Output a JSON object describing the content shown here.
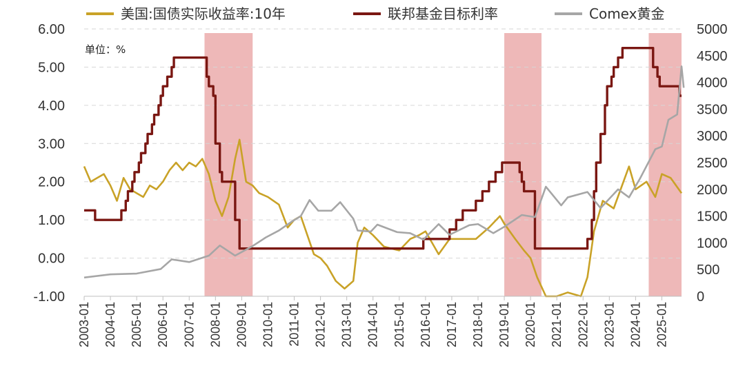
{
  "chart_data": {
    "type": "line",
    "unit_note": "单位：%",
    "x_tick_labels": [
      "2003-01",
      "2004-01",
      "2005-01",
      "2006-01",
      "2007-01",
      "2008-01",
      "2009-01",
      "2010-01",
      "2011-01",
      "2012-01",
      "2013-01",
      "2014-01",
      "2015-01",
      "2016-01",
      "2017-01",
      "2018-01",
      "2019-01",
      "2020-01",
      "2021-01",
      "2022-01",
      "2023-01",
      "2024-01",
      "2025-01"
    ],
    "x_range": [
      "2003-01",
      "2025-10"
    ],
    "y_left": {
      "ticks": [
        "6.00",
        "5.00",
        "4.00",
        "3.00",
        "2.00",
        "1.00",
        "0.00",
        "-1.00"
      ],
      "range": [
        -1.0,
        6.0
      ]
    },
    "y_right": {
      "ticks": [
        "5000",
        "4500",
        "4000",
        "3500",
        "3000",
        "2500",
        "2000",
        "1500",
        "1000",
        "500",
        "0"
      ],
      "range": [
        0,
        5000
      ]
    },
    "grid": "horizontal dashed",
    "legend_position": "top",
    "shaded_periods": [
      {
        "start": "2007-08",
        "end": "2009-06",
        "color": "#eeb8b8"
      },
      {
        "start": "2019-01",
        "end": "2020-06",
        "color": "#eeb8b8"
      },
      {
        "start": "2024-07",
        "end": "2025-10",
        "color": "#eeb8b8"
      }
    ],
    "series": [
      {
        "name": "美国:国债实际收益率:10年",
        "axis": "left",
        "color": "#c9a227",
        "points": [
          [
            "2003-01",
            2.4
          ],
          [
            "2003-04",
            2.0
          ],
          [
            "2003-07",
            2.1
          ],
          [
            "2003-10",
            2.2
          ],
          [
            "2004-01",
            1.9
          ],
          [
            "2004-04",
            1.5
          ],
          [
            "2004-07",
            2.1
          ],
          [
            "2004-10",
            1.8
          ],
          [
            "2005-01",
            1.7
          ],
          [
            "2005-04",
            1.6
          ],
          [
            "2005-07",
            1.9
          ],
          [
            "2005-10",
            1.8
          ],
          [
            "2006-01",
            2.0
          ],
          [
            "2006-04",
            2.3
          ],
          [
            "2006-07",
            2.5
          ],
          [
            "2006-10",
            2.3
          ],
          [
            "2007-01",
            2.5
          ],
          [
            "2007-04",
            2.4
          ],
          [
            "2007-07",
            2.6
          ],
          [
            "2007-10",
            2.2
          ],
          [
            "2008-01",
            1.5
          ],
          [
            "2008-04",
            1.1
          ],
          [
            "2008-07",
            1.6
          ],
          [
            "2008-10",
            2.6
          ],
          [
            "2008-12",
            3.1
          ],
          [
            "2009-03",
            2.0
          ],
          [
            "2009-06",
            1.9
          ],
          [
            "2009-09",
            1.7
          ],
          [
            "2010-01",
            1.6
          ],
          [
            "2010-06",
            1.4
          ],
          [
            "2010-10",
            0.8
          ],
          [
            "2011-01",
            1.0
          ],
          [
            "2011-04",
            1.1
          ],
          [
            "2011-07",
            0.6
          ],
          [
            "2011-10",
            0.1
          ],
          [
            "2012-01",
            0.0
          ],
          [
            "2012-04",
            -0.2
          ],
          [
            "2012-08",
            -0.6
          ],
          [
            "2012-12",
            -0.8
          ],
          [
            "2013-04",
            -0.6
          ],
          [
            "2013-06",
            0.4
          ],
          [
            "2013-09",
            0.8
          ],
          [
            "2014-01",
            0.6
          ],
          [
            "2014-06",
            0.3
          ],
          [
            "2015-01",
            0.2
          ],
          [
            "2015-06",
            0.5
          ],
          [
            "2015-10",
            0.6
          ],
          [
            "2016-01",
            0.7
          ],
          [
            "2016-07",
            0.1
          ],
          [
            "2016-12",
            0.5
          ],
          [
            "2017-06",
            0.5
          ],
          [
            "2017-12",
            0.5
          ],
          [
            "2018-06",
            0.8
          ],
          [
            "2018-11",
            1.1
          ],
          [
            "2019-01",
            0.9
          ],
          [
            "2019-06",
            0.5
          ],
          [
            "2019-10",
            0.2
          ],
          [
            "2020-01",
            0.0
          ],
          [
            "2020-04",
            -0.5
          ],
          [
            "2020-08",
            -1.0
          ],
          [
            "2021-01",
            -1.0
          ],
          [
            "2021-06",
            -0.9
          ],
          [
            "2021-12",
            -1.0
          ],
          [
            "2022-03",
            -0.5
          ],
          [
            "2022-06",
            0.7
          ],
          [
            "2022-10",
            1.5
          ],
          [
            "2023-03",
            1.3
          ],
          [
            "2023-10",
            2.4
          ],
          [
            "2024-01",
            1.8
          ],
          [
            "2024-06",
            2.0
          ],
          [
            "2024-10",
            1.6
          ],
          [
            "2025-01",
            2.2
          ],
          [
            "2025-05",
            2.1
          ],
          [
            "2025-10",
            1.7
          ]
        ]
      },
      {
        "name": "联邦基金目标利率",
        "axis": "left",
        "color": "#7a1712",
        "points": [
          [
            "2003-01",
            1.25
          ],
          [
            "2003-06",
            1.0
          ],
          [
            "2004-06",
            1.25
          ],
          [
            "2004-08",
            1.5
          ],
          [
            "2004-09",
            1.75
          ],
          [
            "2004-11",
            2.0
          ],
          [
            "2004-12",
            2.25
          ],
          [
            "2005-02",
            2.5
          ],
          [
            "2005-03",
            2.75
          ],
          [
            "2005-05",
            3.0
          ],
          [
            "2005-06",
            3.25
          ],
          [
            "2005-08",
            3.5
          ],
          [
            "2005-09",
            3.75
          ],
          [
            "2005-11",
            4.0
          ],
          [
            "2005-12",
            4.25
          ],
          [
            "2006-01",
            4.5
          ],
          [
            "2006-03",
            4.75
          ],
          [
            "2006-05",
            5.0
          ],
          [
            "2006-06",
            5.25
          ],
          [
            "2007-09",
            4.75
          ],
          [
            "2007-10",
            4.5
          ],
          [
            "2007-12",
            4.25
          ],
          [
            "2008-01",
            3.0
          ],
          [
            "2008-03",
            2.25
          ],
          [
            "2008-04",
            2.0
          ],
          [
            "2008-10",
            1.0
          ],
          [
            "2008-12",
            0.25
          ],
          [
            "2015-12",
            0.5
          ],
          [
            "2016-12",
            0.75
          ],
          [
            "2017-03",
            1.0
          ],
          [
            "2017-06",
            1.25
          ],
          [
            "2017-12",
            1.5
          ],
          [
            "2018-03",
            1.75
          ],
          [
            "2018-06",
            2.0
          ],
          [
            "2018-09",
            2.25
          ],
          [
            "2018-12",
            2.5
          ],
          [
            "2019-08",
            2.25
          ],
          [
            "2019-09",
            2.0
          ],
          [
            "2019-10",
            1.75
          ],
          [
            "2020-03",
            0.25
          ],
          [
            "2022-03",
            0.5
          ],
          [
            "2022-05",
            1.0
          ],
          [
            "2022-06",
            1.75
          ],
          [
            "2022-07",
            2.5
          ],
          [
            "2022-09",
            3.25
          ],
          [
            "2022-11",
            4.0
          ],
          [
            "2022-12",
            4.5
          ],
          [
            "2023-02",
            4.75
          ],
          [
            "2023-03",
            5.0
          ],
          [
            "2023-05",
            5.25
          ],
          [
            "2023-07",
            5.5
          ],
          [
            "2024-09",
            5.0
          ],
          [
            "2024-11",
            4.75
          ],
          [
            "2024-12",
            4.5
          ],
          [
            "2025-09",
            4.25
          ]
        ]
      },
      {
        "name": "Comex黄金",
        "axis": "right",
        "color": "#a6a6a6",
        "points": [
          [
            "2003-01",
            350
          ],
          [
            "2004-01",
            410
          ],
          [
            "2005-01",
            425
          ],
          [
            "2005-12",
            510
          ],
          [
            "2006-05",
            690
          ],
          [
            "2007-01",
            640
          ],
          [
            "2007-10",
            760
          ],
          [
            "2008-03",
            950
          ],
          [
            "2008-10",
            760
          ],
          [
            "2009-06",
            940
          ],
          [
            "2009-12",
            1100
          ],
          [
            "2010-06",
            1230
          ],
          [
            "2010-12",
            1400
          ],
          [
            "2011-04",
            1500
          ],
          [
            "2011-08",
            1800
          ],
          [
            "2011-12",
            1600
          ],
          [
            "2012-06",
            1600
          ],
          [
            "2012-10",
            1760
          ],
          [
            "2013-04",
            1450
          ],
          [
            "2013-06",
            1230
          ],
          [
            "2013-12",
            1210
          ],
          [
            "2014-03",
            1340
          ],
          [
            "2014-12",
            1200
          ],
          [
            "2015-06",
            1180
          ],
          [
            "2015-12",
            1060
          ],
          [
            "2016-07",
            1350
          ],
          [
            "2016-12",
            1150
          ],
          [
            "2017-09",
            1330
          ],
          [
            "2018-01",
            1350
          ],
          [
            "2018-08",
            1180
          ],
          [
            "2019-01",
            1300
          ],
          [
            "2019-09",
            1520
          ],
          [
            "2020-03",
            1480
          ],
          [
            "2020-08",
            2050
          ],
          [
            "2021-03",
            1700
          ],
          [
            "2021-06",
            1850
          ],
          [
            "2022-03",
            1950
          ],
          [
            "2022-09",
            1650
          ],
          [
            "2023-05",
            2000
          ],
          [
            "2023-10",
            1850
          ],
          [
            "2024-03",
            2200
          ],
          [
            "2024-10",
            2750
          ],
          [
            "2025-01",
            2800
          ],
          [
            "2025-04",
            3300
          ],
          [
            "2025-08",
            3400
          ],
          [
            "2025-10",
            4300
          ],
          [
            "2025-11",
            3900
          ]
        ]
      }
    ]
  }
}
